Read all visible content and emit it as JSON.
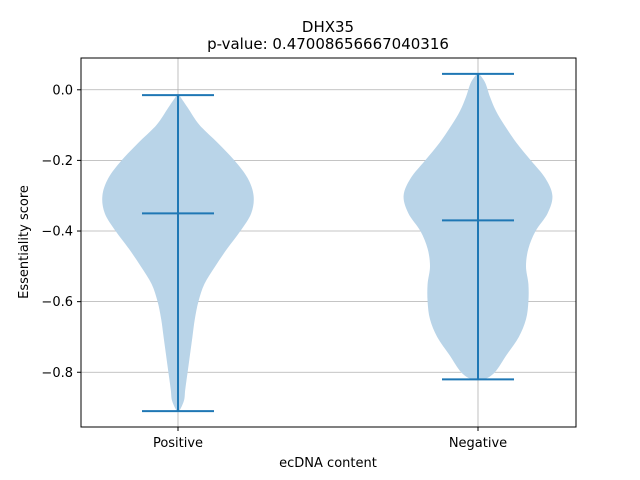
{
  "chart_data": {
    "type": "violin",
    "title": "DHX35",
    "subtitle": "p-value: 0.47008656667040316",
    "xlabel": "ecDNA content",
    "ylabel": "Essentiality score",
    "categories": [
      "Positive",
      "Negative"
    ],
    "ylim": [
      -0.955,
      0.09
    ],
    "yticks": [
      0.0,
      -0.2,
      -0.4,
      -0.6,
      -0.8
    ],
    "ytick_labels": [
      "0.0",
      "−0.2",
      "−0.4",
      "−0.6",
      "−0.8"
    ],
    "grid": true,
    "colors": {
      "body": "#b9d4e8",
      "line": "#1f77b4",
      "grid": "#b0b0b0"
    },
    "series": [
      {
        "category": "Positive",
        "min": -0.91,
        "median": -0.35,
        "max": -0.015,
        "density": [
          [
            -0.015,
            0.01
          ],
          [
            -0.05,
            0.08
          ],
          [
            -0.1,
            0.18
          ],
          [
            -0.15,
            0.33
          ],
          [
            -0.2,
            0.47
          ],
          [
            -0.25,
            0.58
          ],
          [
            -0.3,
            0.63
          ],
          [
            -0.35,
            0.61
          ],
          [
            -0.4,
            0.52
          ],
          [
            -0.45,
            0.41
          ],
          [
            -0.5,
            0.31
          ],
          [
            -0.55,
            0.22
          ],
          [
            -0.6,
            0.17
          ],
          [
            -0.65,
            0.14
          ],
          [
            -0.7,
            0.12
          ],
          [
            -0.75,
            0.1
          ],
          [
            -0.8,
            0.08
          ],
          [
            -0.85,
            0.06
          ],
          [
            -0.88,
            0.05
          ],
          [
            -0.91,
            0.01
          ]
        ]
      },
      {
        "category": "Negative",
        "min": -0.82,
        "median": -0.37,
        "max": 0.045,
        "density": [
          [
            0.045,
            0.01
          ],
          [
            0.02,
            0.06
          ],
          [
            -0.02,
            0.1
          ],
          [
            -0.06,
            0.15
          ],
          [
            -0.1,
            0.22
          ],
          [
            -0.15,
            0.32
          ],
          [
            -0.2,
            0.44
          ],
          [
            -0.25,
            0.56
          ],
          [
            -0.3,
            0.62
          ],
          [
            -0.35,
            0.58
          ],
          [
            -0.4,
            0.48
          ],
          [
            -0.45,
            0.42
          ],
          [
            -0.5,
            0.4
          ],
          [
            -0.55,
            0.42
          ],
          [
            -0.6,
            0.42
          ],
          [
            -0.65,
            0.4
          ],
          [
            -0.7,
            0.34
          ],
          [
            -0.75,
            0.24
          ],
          [
            -0.8,
            0.14
          ],
          [
            -0.82,
            0.05
          ]
        ]
      }
    ]
  }
}
